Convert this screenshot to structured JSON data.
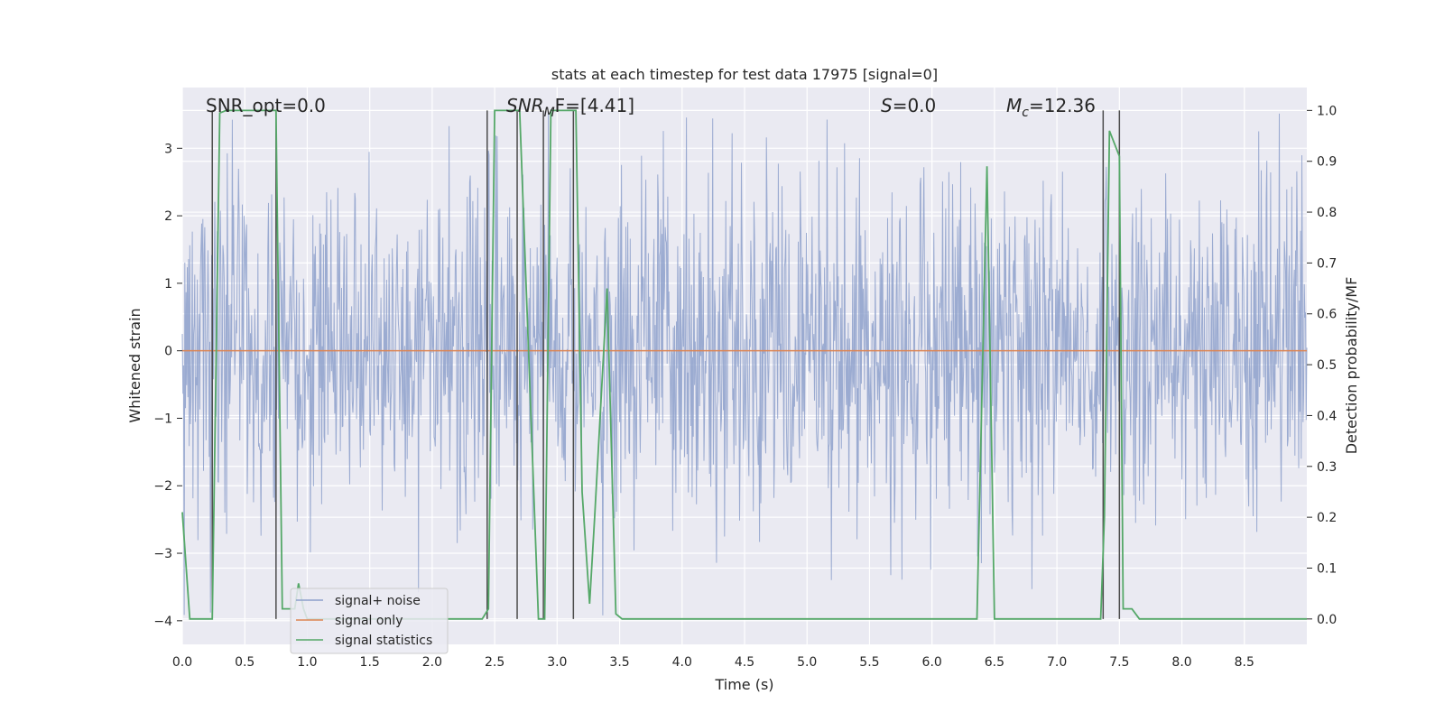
{
  "chart_data": {
    "type": "line",
    "title": "stats at each timestep for test data 17975 [signal=0]",
    "xlabel": "Time (s)",
    "ylabel": "Whitened strain",
    "ylabel_right": "Detection probability/MF",
    "xlim": [
      0.0,
      9.0
    ],
    "ylim": [
      -4.35,
      3.9
    ],
    "ylim_right": [
      -0.05,
      1.045
    ],
    "grid": true,
    "legend_position": "lower-left",
    "x_ticks": [
      "0.0",
      "0.5",
      "1.0",
      "1.5",
      "2.0",
      "2.5",
      "3.0",
      "3.5",
      "4.0",
      "4.5",
      "5.0",
      "5.5",
      "6.0",
      "6.5",
      "7.0",
      "7.5",
      "8.0",
      "8.5"
    ],
    "y_ticks": [
      "3",
      "2",
      "1",
      "0",
      "−1",
      "−2",
      "−3",
      "−4"
    ],
    "y_right_ticks": [
      "1.0",
      "0.9",
      "0.8",
      "0.7",
      "0.6",
      "0.5",
      "0.4",
      "0.3",
      "0.2",
      "0.1",
      "0.0"
    ],
    "annotations": {
      "snr_opt": "SNR_opt=0.0",
      "snr_mf_prefix": "SNR",
      "snr_mf_sub": "M",
      "snr_mf_suffix": "F=[4.41]",
      "s_sym": "S",
      "s_val": "=0.0",
      "mc_sym": "M",
      "mc_sub": "c",
      "mc_val": "=12.36"
    },
    "series": [
      {
        "name": "signal+ noise",
        "color": "#8da0cb",
        "description_points": "noise",
        "x_range": [
          0.0,
          9.0
        ],
        "amplitude_typical": 1.3,
        "amplitude_max": 3.6
      },
      {
        "name": "signal only",
        "color": "#dd8452",
        "x": [
          0.0,
          9.0
        ],
        "y": [
          0.0,
          0.0
        ]
      },
      {
        "name": "signal statistics",
        "color": "#55a868",
        "axis": "right",
        "x": [
          0.0,
          0.06,
          0.1,
          0.24,
          0.3,
          0.35,
          0.73,
          0.75,
          0.8,
          0.9,
          0.93,
          0.97,
          1.0,
          1.5,
          2.0,
          2.4,
          2.45,
          2.5,
          2.7,
          2.85,
          2.9,
          2.95,
          3.0,
          3.15,
          3.2,
          3.26,
          3.3,
          3.4,
          3.47,
          3.52,
          4.0,
          5.0,
          6.0,
          6.36,
          6.44,
          6.5,
          7.0,
          7.35,
          7.38,
          7.42,
          7.5,
          7.53,
          7.6,
          7.66,
          8.0,
          8.5,
          9.0
        ],
        "y": [
          0.21,
          0.0,
          0.0,
          0.0,
          0.995,
          1.0,
          1.0,
          1.0,
          0.02,
          0.02,
          0.07,
          0.02,
          0.0,
          0.0,
          0.0,
          0.0,
          0.02,
          1.0,
          1.0,
          0.0,
          0.0,
          1.0,
          1.0,
          1.0,
          0.25,
          0.03,
          0.2,
          0.65,
          0.01,
          0.0,
          0.0,
          0.0,
          0.0,
          0.0,
          0.89,
          0.0,
          0.0,
          0.0,
          0.2,
          0.96,
          0.91,
          0.02,
          0.02,
          0.0,
          0.0,
          0.0,
          0.0
        ]
      }
    ],
    "vertical_lines": {
      "color": "#4c4c4c",
      "x": [
        0.24,
        0.75,
        2.44,
        2.68,
        2.89,
        3.13,
        7.37,
        7.5
      ]
    }
  },
  "legend": {
    "items": [
      {
        "label": "signal+ noise",
        "color": "#8da0cb"
      },
      {
        "label": "signal only",
        "color": "#dd8452"
      },
      {
        "label": "signal statistics",
        "color": "#55a868"
      }
    ]
  },
  "colors": {
    "plot_bg": "#eaeaf2",
    "grid": "#ffffff",
    "vline": "#4c4c4c"
  }
}
